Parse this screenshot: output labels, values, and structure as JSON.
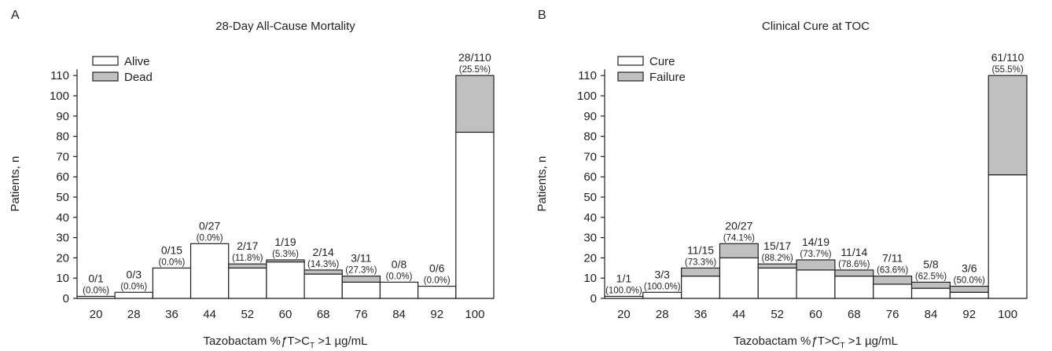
{
  "colors": {
    "lower_segment": "#ffffff",
    "upper_segment": "#c0c0c0",
    "stroke": "#231f20",
    "text": "#231f20"
  },
  "chart_data": [
    {
      "type": "bar",
      "stacked": true,
      "panel_label": "A",
      "title": "28-Day All-Cause Mortality",
      "xlabel_prefix": "Tazobactam %",
      "xlabel_italic": "ƒ",
      "xlabel_mid": "T>C",
      "xlabel_sub": "T",
      "xlabel_suffix": " >1 µg/mL",
      "ylabel": "Patients, n",
      "ylim": [
        0,
        110
      ],
      "yticks": [
        0,
        10,
        20,
        30,
        40,
        50,
        60,
        70,
        80,
        90,
        100,
        110
      ],
      "categories": [
        "20",
        "28",
        "36",
        "44",
        "52",
        "60",
        "68",
        "76",
        "84",
        "92",
        "100"
      ],
      "series": [
        {
          "name": "Alive",
          "values": [
            1,
            3,
            15,
            27,
            15,
            18,
            12,
            8,
            8,
            6,
            82
          ]
        },
        {
          "name": "Dead",
          "values": [
            0,
            0,
            0,
            0,
            2,
            1,
            2,
            3,
            0,
            0,
            28
          ]
        }
      ],
      "legend_position": "top-left",
      "bar_labels": [
        {
          "frac": "0/1",
          "pct": "(0.0%)"
        },
        {
          "frac": "0/3",
          "pct": "(0.0%)"
        },
        {
          "frac": "0/15",
          "pct": "(0.0%)"
        },
        {
          "frac": "0/27",
          "pct": "(0.0%)"
        },
        {
          "frac": "2/17",
          "pct": "(11.8%)"
        },
        {
          "frac": "1/19",
          "pct": "(5.3%)"
        },
        {
          "frac": "2/14",
          "pct": "(14.3%)"
        },
        {
          "frac": "3/11",
          "pct": "(27.3%)"
        },
        {
          "frac": "0/8",
          "pct": "(0.0%)"
        },
        {
          "frac": "0/6",
          "pct": "(0.0%)"
        },
        {
          "frac": "28/110",
          "pct": "(25.5%)"
        }
      ]
    },
    {
      "type": "bar",
      "stacked": true,
      "panel_label": "B",
      "title": "Clinical Cure at TOC",
      "xlabel_prefix": "Tazobactam %",
      "xlabel_italic": "ƒ",
      "xlabel_mid": "T>C",
      "xlabel_sub": "T",
      "xlabel_suffix": " >1 µg/mL",
      "ylabel": "Patients, n",
      "ylim": [
        0,
        110
      ],
      "yticks": [
        0,
        10,
        20,
        30,
        40,
        50,
        60,
        70,
        80,
        90,
        100,
        110
      ],
      "categories": [
        "20",
        "28",
        "36",
        "44",
        "52",
        "60",
        "68",
        "76",
        "84",
        "92",
        "100"
      ],
      "series": [
        {
          "name": "Cure",
          "values": [
            1,
            3,
            11,
            20,
            15,
            14,
            11,
            7,
            5,
            3,
            61
          ]
        },
        {
          "name": "Failure",
          "values": [
            0,
            0,
            4,
            7,
            2,
            5,
            3,
            4,
            3,
            3,
            49
          ]
        }
      ],
      "legend_position": "top-left",
      "bar_labels": [
        {
          "frac": "1/1",
          "pct": "(100.0%)"
        },
        {
          "frac": "3/3",
          "pct": "(100.0%)"
        },
        {
          "frac": "11/15",
          "pct": "(73.3%)"
        },
        {
          "frac": "20/27",
          "pct": "(74.1%)"
        },
        {
          "frac": "15/17",
          "pct": "(88.2%)"
        },
        {
          "frac": "14/19",
          "pct": "(73.7%)"
        },
        {
          "frac": "11/14",
          "pct": "(78.6%)"
        },
        {
          "frac": "7/11",
          "pct": "(63.6%)"
        },
        {
          "frac": "5/8",
          "pct": "(62.5%)"
        },
        {
          "frac": "3/6",
          "pct": "(50.0%)"
        },
        {
          "frac": "61/110",
          "pct": "(55.5%)"
        }
      ]
    }
  ]
}
